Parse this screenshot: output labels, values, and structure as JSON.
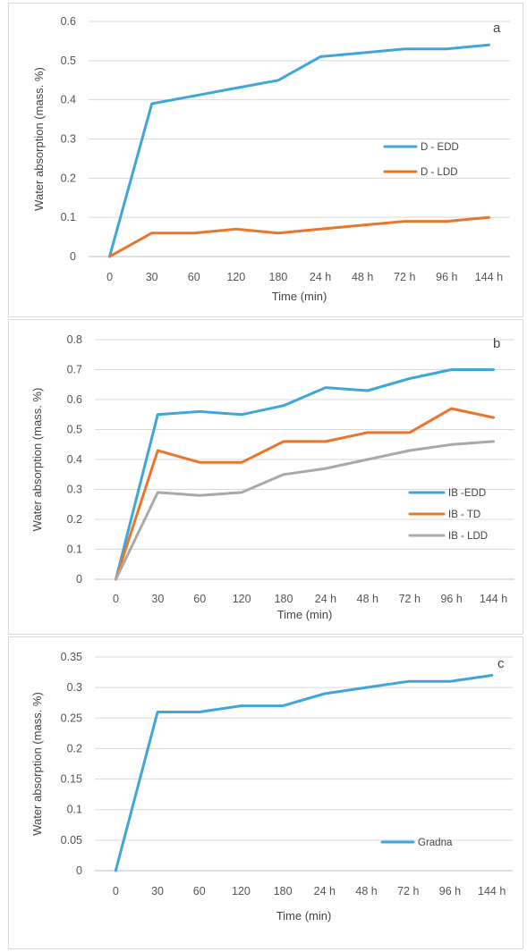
{
  "chart_data": [
    {
      "type": "line",
      "panel_label": "a",
      "categories": [
        "0",
        "30",
        "60",
        "120",
        "180",
        "24 h",
        "48 h",
        "72 h",
        "96 h",
        "144 h"
      ],
      "xlabel": "Time (min)",
      "ylabel": "Water absorption (mass. %)",
      "ylim": [
        0,
        0.6
      ],
      "yticks": [
        "0",
        "0.1",
        "0.2",
        "0.3",
        "0.4",
        "0.5",
        "0.6"
      ],
      "grid": true,
      "legend_position": "right",
      "series": [
        {
          "name": "D - EDD",
          "color": "#3fa6d9",
          "values": [
            0,
            0.39,
            0.41,
            0.43,
            0.45,
            0.51,
            0.52,
            0.53,
            0.53,
            0.54
          ]
        },
        {
          "name": "D - LDD",
          "color": "#e8762d",
          "values": [
            0,
            0.06,
            0.06,
            0.07,
            0.06,
            0.07,
            0.08,
            0.09,
            0.09,
            0.1
          ]
        }
      ]
    },
    {
      "type": "line",
      "panel_label": "b",
      "categories": [
        "0",
        "30",
        "60",
        "120",
        "180",
        "24 h",
        "48 h",
        "72 h",
        "96 h",
        "144 h"
      ],
      "xlabel": "Time (min)",
      "ylabel": "Water absorption (mass. %)",
      "ylim": [
        0,
        0.8
      ],
      "yticks": [
        "0",
        "0.1",
        "0.2",
        "0.3",
        "0.4",
        "0.5",
        "0.6",
        "0.7",
        "0.8"
      ],
      "grid": true,
      "legend_position": "right",
      "series": [
        {
          "name": "IB -EDD",
          "color": "#3fa6d9",
          "values": [
            0,
            0.55,
            0.56,
            0.55,
            0.58,
            0.64,
            0.63,
            0.67,
            0.7,
            0.7
          ]
        },
        {
          "name": "IB - TD",
          "color": "#e8762d",
          "values": [
            0,
            0.43,
            0.39,
            0.39,
            0.46,
            0.46,
            0.49,
            0.49,
            0.57,
            0.54
          ]
        },
        {
          "name": "IB - LDD",
          "color": "#a9a9a9",
          "values": [
            0,
            0.29,
            0.28,
            0.29,
            0.35,
            0.37,
            0.4,
            0.43,
            0.45,
            0.46
          ]
        }
      ]
    },
    {
      "type": "line",
      "panel_label": "c",
      "categories": [
        "0",
        "30",
        "60",
        "120",
        "180",
        "24 h",
        "48 h",
        "72 h",
        "96 h",
        "144 h"
      ],
      "xlabel": "Time (min)",
      "ylabel": "Water absorption (mass. %)",
      "ylim": [
        0,
        0.35
      ],
      "yticks": [
        "0",
        "0.05",
        "0.1",
        "0.15",
        "0.2",
        "0.25",
        "0.3",
        "0.35"
      ],
      "grid": true,
      "legend_position": "bottom-right",
      "series": [
        {
          "name": "Gradna",
          "color": "#3fa6d9",
          "values": [
            0,
            0.26,
            0.26,
            0.27,
            0.27,
            0.29,
            0.3,
            0.31,
            0.31,
            0.32
          ]
        }
      ]
    }
  ]
}
